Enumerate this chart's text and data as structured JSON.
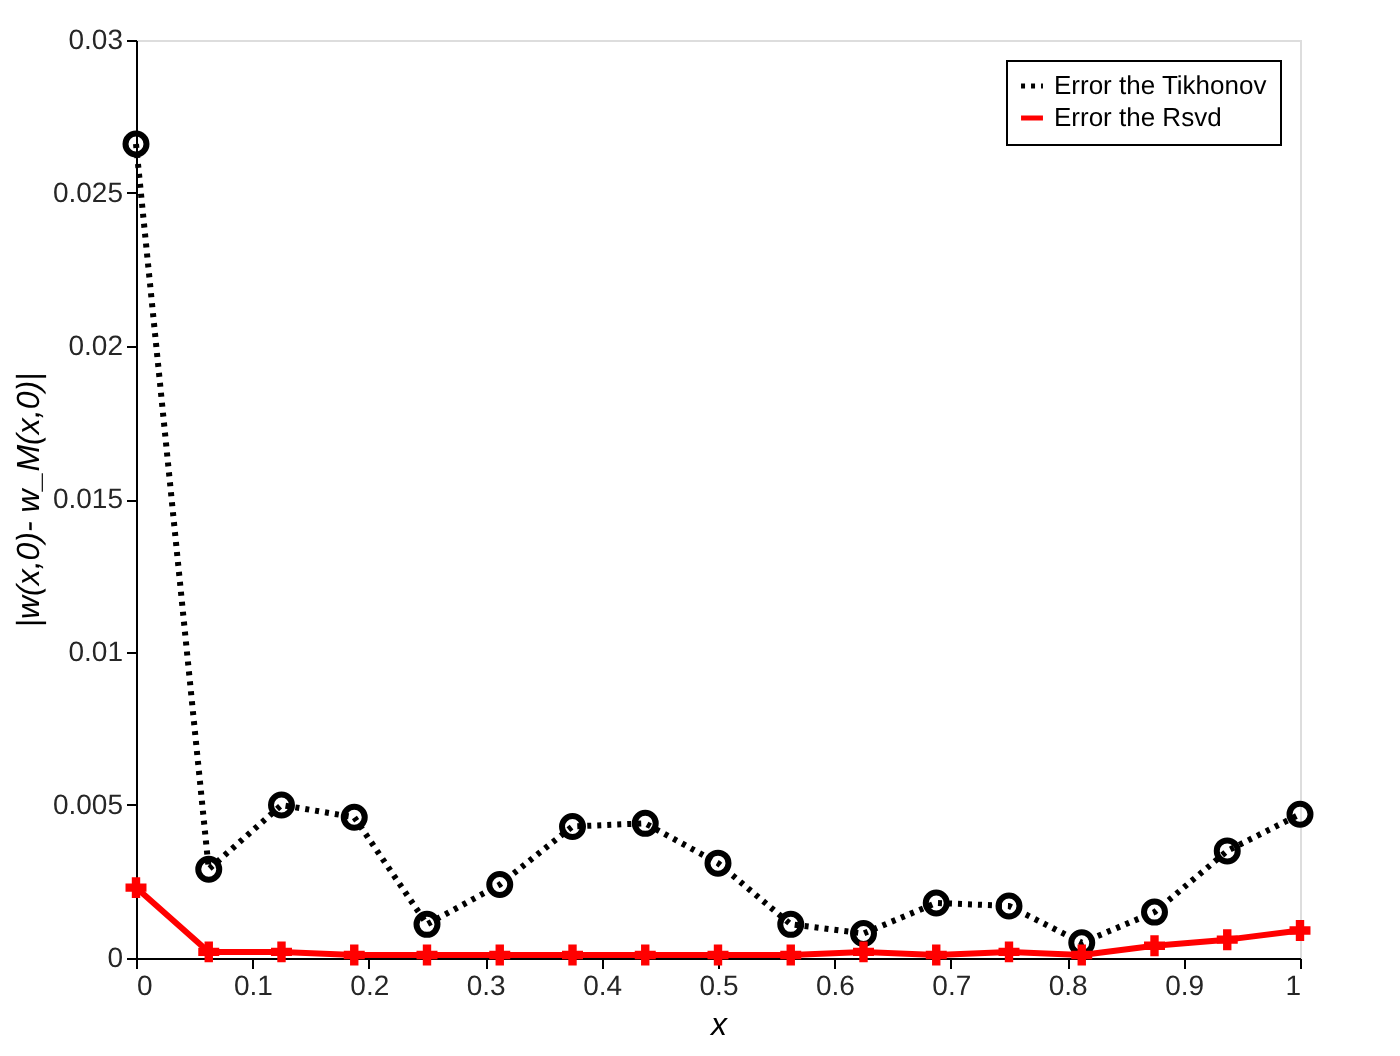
{
  "chart_data": {
    "type": "line",
    "xlabel": "x",
    "ylabel": "|w(x,0)- w_M(x,0)|",
    "x": [
      0,
      0.0625,
      0.125,
      0.1875,
      0.25,
      0.3125,
      0.375,
      0.4375,
      0.5,
      0.5625,
      0.625,
      0.6875,
      0.75,
      0.8125,
      0.875,
      0.9375,
      1
    ],
    "series": [
      {
        "name": "Error the Tikhonov",
        "color": "#000000",
        "marker": "circle",
        "line_style": "dotted",
        "values": [
          0.0266,
          0.0029,
          0.005,
          0.0046,
          0.0011,
          0.0024,
          0.0043,
          0.0044,
          0.0031,
          0.0011,
          0.0008,
          0.0018,
          0.0017,
          0.0005,
          0.0015,
          0.0035,
          0.0047
        ]
      },
      {
        "name": "Error the Rsvd",
        "color": "#ff0000",
        "marker": "cross",
        "line_style": "solid",
        "values": [
          0.0023,
          0.0002,
          0.0002,
          0.0001,
          0.0001,
          0.0001,
          0.0001,
          0.0001,
          0.0001,
          0.0001,
          0.0002,
          0.0001,
          0.0002,
          0.0001,
          0.0004,
          0.0006,
          0.0009
        ]
      }
    ],
    "xlim": [
      0,
      1
    ],
    "xticks": [
      0,
      0.1,
      0.2,
      0.3,
      0.4,
      0.5,
      0.6,
      0.7,
      0.8,
      0.9,
      1
    ],
    "ylim": [
      0,
      0.03
    ],
    "yticks": [
      0,
      0.005,
      0.01,
      0.015,
      0.02,
      0.025,
      0.03
    ],
    "grid": false,
    "legend": "top right"
  }
}
